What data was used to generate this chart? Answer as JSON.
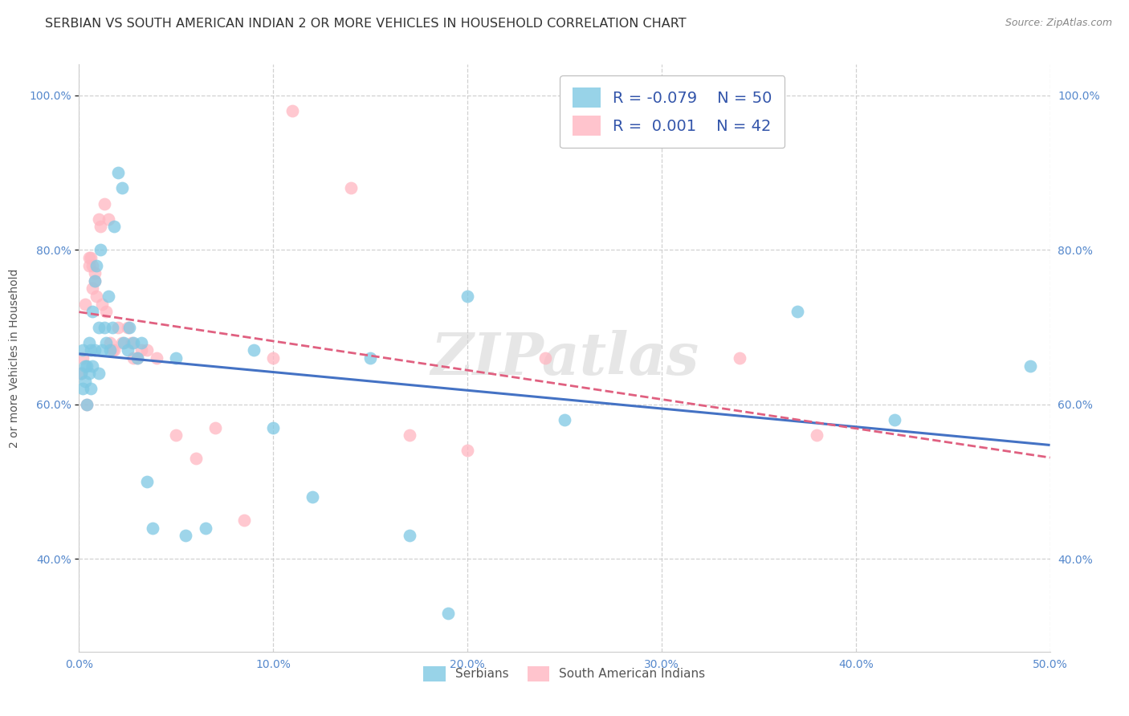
{
  "title": "SERBIAN VS SOUTH AMERICAN INDIAN 2 OR MORE VEHICLES IN HOUSEHOLD CORRELATION CHART",
  "source": "Source: ZipAtlas.com",
  "ylabel": "2 or more Vehicles in Household",
  "xlim": [
    0.0,
    0.5
  ],
  "ylim": [
    0.28,
    1.04
  ],
  "xticks": [
    0.0,
    0.1,
    0.2,
    0.3,
    0.4,
    0.5
  ],
  "yticks": [
    0.4,
    0.6,
    0.8,
    1.0
  ],
  "xticklabels": [
    "0.0%",
    "10.0%",
    "20.0%",
    "30.0%",
    "40.0%",
    "50.0%"
  ],
  "yticklabels": [
    "40.0%",
    "60.0%",
    "80.0%",
    "100.0%"
  ],
  "legend_r_serbian": "-0.079",
  "legend_n_serbian": "50",
  "legend_r_south_american": "0.001",
  "legend_n_south_american": "42",
  "color_serbian": "#7ec8e3",
  "color_south_american": "#ffb6c1",
  "line_serbian": "#4472c4",
  "line_south_american": "#e06080",
  "serbian_x": [
    0.001,
    0.002,
    0.002,
    0.003,
    0.003,
    0.004,
    0.004,
    0.005,
    0.005,
    0.006,
    0.006,
    0.007,
    0.007,
    0.008,
    0.008,
    0.009,
    0.01,
    0.01,
    0.011,
    0.012,
    0.013,
    0.014,
    0.015,
    0.016,
    0.017,
    0.018,
    0.02,
    0.022,
    0.023,
    0.025,
    0.026,
    0.028,
    0.03,
    0.032,
    0.035,
    0.038,
    0.05,
    0.055,
    0.065,
    0.09,
    0.1,
    0.12,
    0.15,
    0.17,
    0.19,
    0.2,
    0.25,
    0.37,
    0.42,
    0.49
  ],
  "serbian_y": [
    0.64,
    0.62,
    0.67,
    0.65,
    0.63,
    0.6,
    0.65,
    0.64,
    0.68,
    0.62,
    0.67,
    0.65,
    0.72,
    0.67,
    0.76,
    0.78,
    0.64,
    0.7,
    0.8,
    0.67,
    0.7,
    0.68,
    0.74,
    0.67,
    0.7,
    0.83,
    0.9,
    0.88,
    0.68,
    0.67,
    0.7,
    0.68,
    0.66,
    0.68,
    0.5,
    0.44,
    0.66,
    0.43,
    0.44,
    0.67,
    0.57,
    0.48,
    0.66,
    0.43,
    0.33,
    0.74,
    0.58,
    0.72,
    0.58,
    0.65
  ],
  "south_american_x": [
    0.001,
    0.002,
    0.003,
    0.004,
    0.005,
    0.005,
    0.006,
    0.007,
    0.007,
    0.008,
    0.008,
    0.009,
    0.01,
    0.011,
    0.012,
    0.013,
    0.014,
    0.015,
    0.016,
    0.017,
    0.018,
    0.02,
    0.022,
    0.025,
    0.027,
    0.028,
    0.03,
    0.032,
    0.035,
    0.04,
    0.05,
    0.06,
    0.07,
    0.085,
    0.1,
    0.11,
    0.14,
    0.17,
    0.2,
    0.24,
    0.34,
    0.38
  ],
  "south_american_y": [
    0.64,
    0.66,
    0.73,
    0.6,
    0.79,
    0.78,
    0.79,
    0.78,
    0.75,
    0.76,
    0.77,
    0.74,
    0.84,
    0.83,
    0.73,
    0.86,
    0.72,
    0.84,
    0.68,
    0.67,
    0.67,
    0.7,
    0.68,
    0.7,
    0.68,
    0.66,
    0.66,
    0.67,
    0.67,
    0.66,
    0.56,
    0.53,
    0.57,
    0.45,
    0.66,
    0.98,
    0.88,
    0.56,
    0.54,
    0.66,
    0.66,
    0.56
  ],
  "watermark": "ZIPatlas",
  "grid_color": "#cccccc",
  "background_color": "#ffffff",
  "title_fontsize": 11.5,
  "axis_label_fontsize": 10,
  "tick_fontsize": 10,
  "legend_fontsize": 14,
  "source_fontsize": 9
}
